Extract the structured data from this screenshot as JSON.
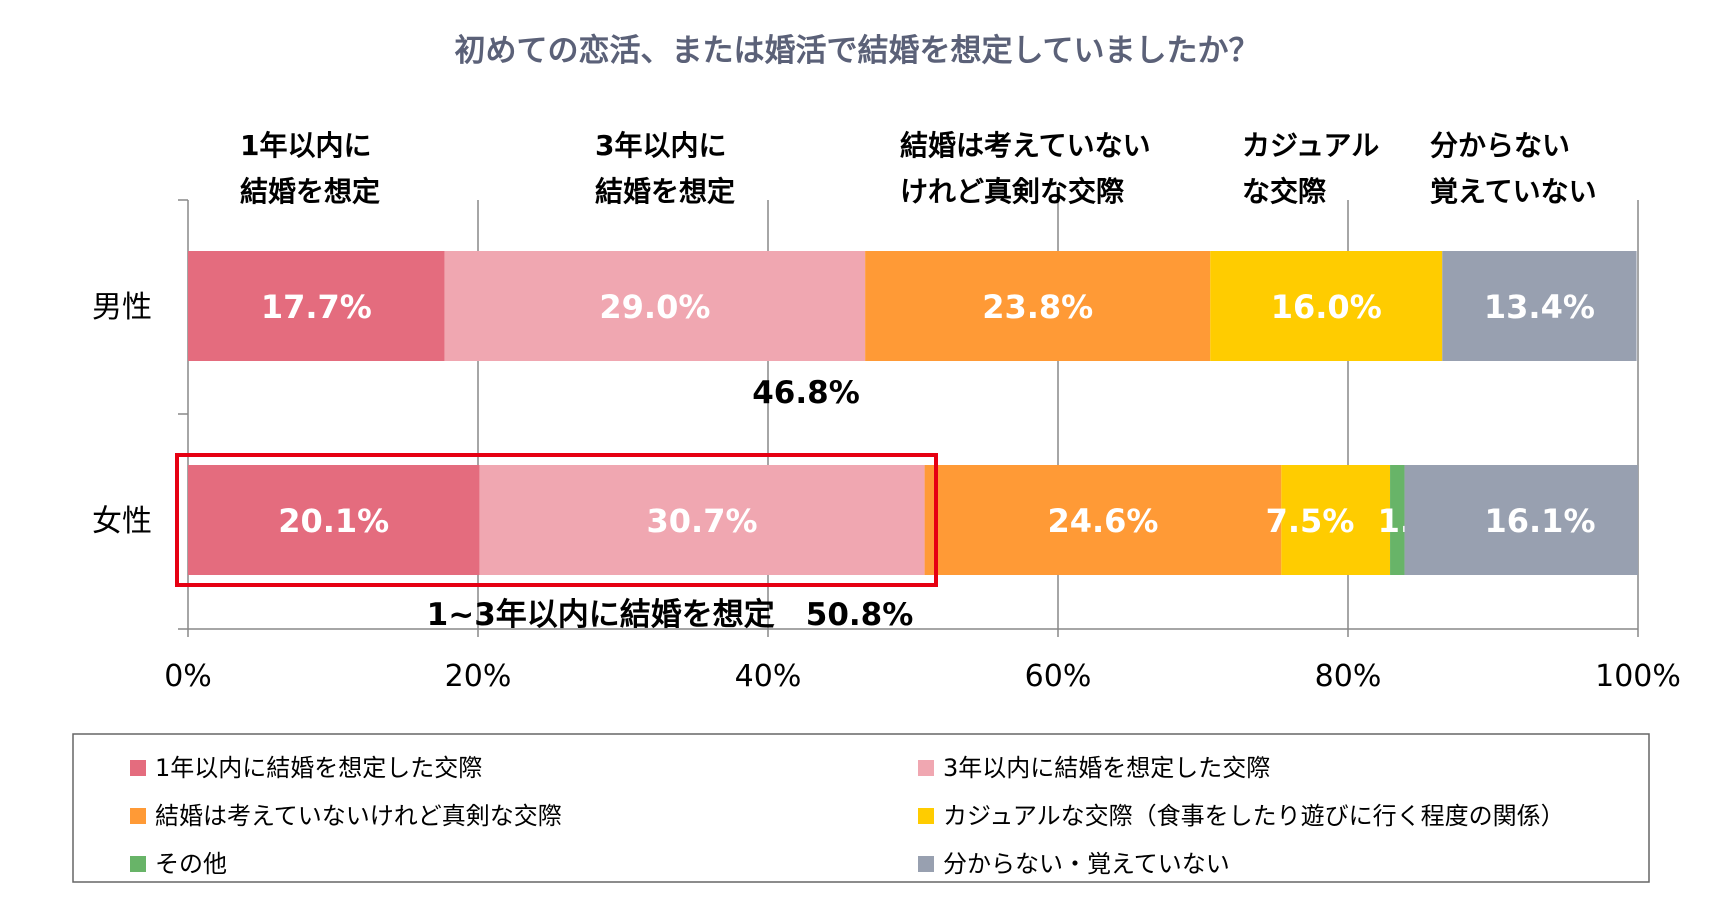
{
  "chart_data": {
    "type": "bar",
    "orientation": "horizontal",
    "stacked": "percent",
    "title": "初めての恋活、または婚活で結婚を想定していましたか？",
    "categories": [
      "男性",
      "女性"
    ],
    "series": [
      {
        "name": "1年以内に結婚を想定した交際",
        "header": [
          "1年以内に",
          "結婚を想定"
        ],
        "color": "#E46C7E",
        "values": [
          17.7,
          20.1
        ],
        "labels": [
          "17.7%",
          "20.1%"
        ]
      },
      {
        "name": "3年以内に結婚を想定した交際",
        "header": [
          "3年以内に",
          "結婚を想定"
        ],
        "color": "#F0A7B1",
        "values": [
          29.0,
          30.7
        ],
        "labels": [
          "29.0%",
          "30.7%"
        ]
      },
      {
        "name": "結婚は考えていないけれど真剣な交際",
        "header": [
          "結婚は考えていない",
          "けれど真剣な交際"
        ],
        "color": "#FF9A36",
        "values": [
          23.8,
          24.6
        ],
        "labels": [
          "23.8%",
          "24.6%"
        ]
      },
      {
        "name": "カジュアルな交際（食事をしたり遊びに行く程度の関係）",
        "header": [
          "カジュアル",
          "な交際"
        ],
        "color": "#FFCC00",
        "values": [
          16.0,
          7.5
        ],
        "labels": [
          "16.0%",
          "7.5%"
        ]
      },
      {
        "name": "その他",
        "header": [],
        "color": "#68B468",
        "values": [
          0,
          1.0
        ],
        "labels": [
          "",
          "1.0%"
        ]
      },
      {
        "name": "分からない・覚えていない",
        "header": [
          "分からない",
          "覚えていない"
        ],
        "color": "#98A0B0",
        "values": [
          13.4,
          16.1
        ],
        "labels": [
          "13.4%",
          "16.1%"
        ]
      }
    ],
    "xlim": [
      0,
      100
    ],
    "xticks": [
      "0%",
      "20%",
      "40%",
      "60%",
      "80%",
      "100%"
    ],
    "grid": true,
    "legend": "bottom",
    "annotations": {
      "male_cumulative": "46.8%",
      "female_cumulative": "1~3年以内に結婚を想定　50.8%",
      "highlight_color": "#E60012"
    }
  }
}
